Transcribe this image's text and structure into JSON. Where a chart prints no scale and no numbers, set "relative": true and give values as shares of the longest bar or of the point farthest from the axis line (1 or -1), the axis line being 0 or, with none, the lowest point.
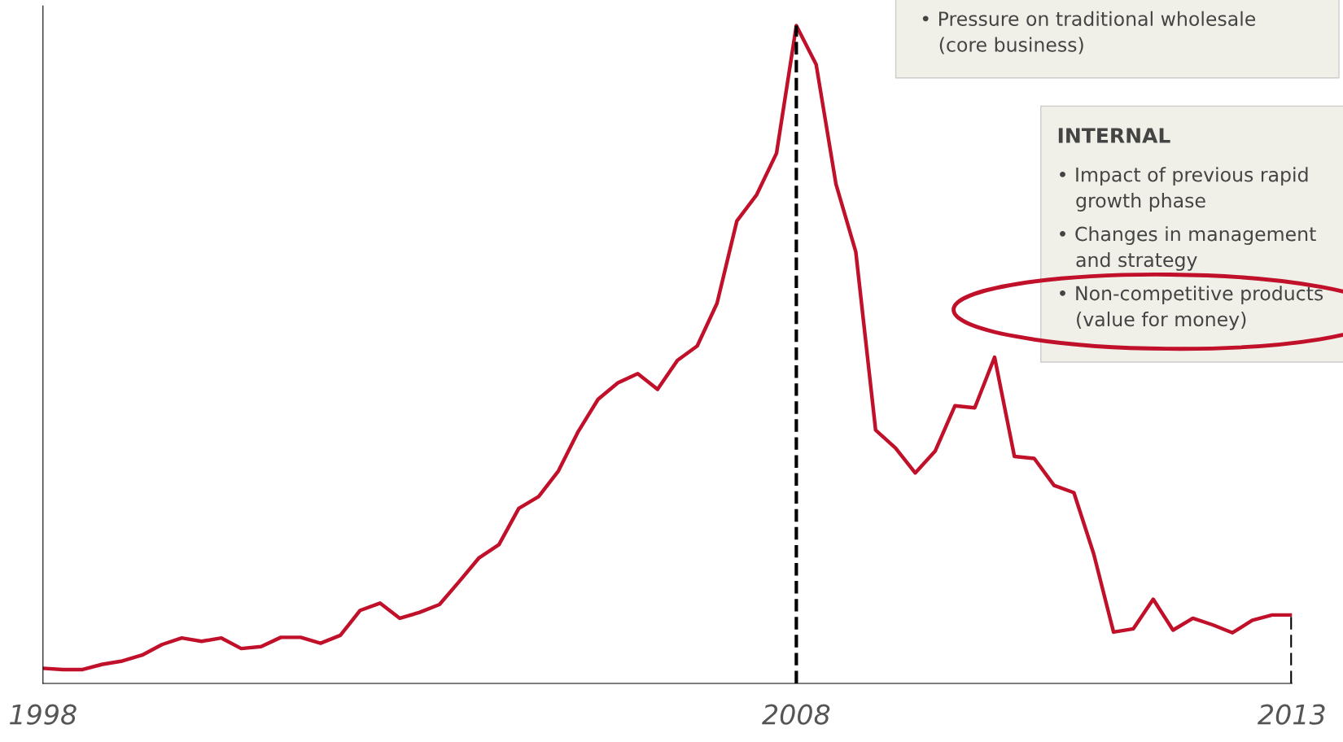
{
  "chart_data": {
    "type": "line",
    "relative": true,
    "categories": [
      "1998",
      null,
      null,
      null,
      null,
      null,
      null,
      null,
      null,
      null,
      null,
      null,
      null,
      null,
      null,
      null,
      null,
      null,
      null,
      null,
      null,
      null,
      null,
      null,
      null,
      null,
      null,
      null,
      null,
      null,
      null,
      null,
      null,
      null,
      null,
      null,
      null,
      null,
      "2008",
      null,
      null,
      null,
      null,
      null,
      null,
      null,
      null,
      null,
      null,
      null,
      null,
      null,
      null,
      null,
      null,
      null,
      null,
      null,
      null,
      null,
      null,
      null,
      null,
      "2013"
    ],
    "series": [
      {
        "color": "#c0102a",
        "values": [
          0.023,
          0.021,
          0.021,
          0.029,
          0.034,
          0.043,
          0.059,
          0.069,
          0.064,
          0.069,
          0.053,
          0.056,
          0.07,
          0.07,
          0.061,
          0.073,
          0.111,
          0.122,
          0.099,
          0.108,
          0.12,
          0.155,
          0.191,
          0.211,
          0.266,
          0.284,
          0.323,
          0.383,
          0.432,
          0.457,
          0.471,
          0.447,
          0.491,
          0.513,
          0.578,
          0.703,
          0.743,
          0.806,
          1,
          0.941,
          0.759,
          0.656,
          0.385,
          0.358,
          0.32,
          0.353,
          0.422,
          0.419,
          0.496,
          0.345,
          0.342,
          0.301,
          0.29,
          0.197,
          0.078,
          0.083,
          0.128,
          0.081,
          0.099,
          0.089,
          0.077,
          0.096,
          0.104,
          0.104
        ]
      }
    ],
    "ref_lines": [
      {
        "axis": "x",
        "value": "2008",
        "color": "#000000",
        "line_style": "dashed"
      },
      {
        "axis": "x",
        "value": "2013",
        "color": "#000000",
        "line_style": "dashed"
      }
    ],
    "annotations": [
      "• Pressure on traditional wholesale\n   (core business)",
      "INTERNAL",
      "• Impact of previous rapid\n   growth phase",
      "• Changes in management\n   and strategy",
      "• Non-competitive products\n   (value for money)"
    ],
    "grid": false,
    "marker": "none",
    "line_style": "solid"
  }
}
